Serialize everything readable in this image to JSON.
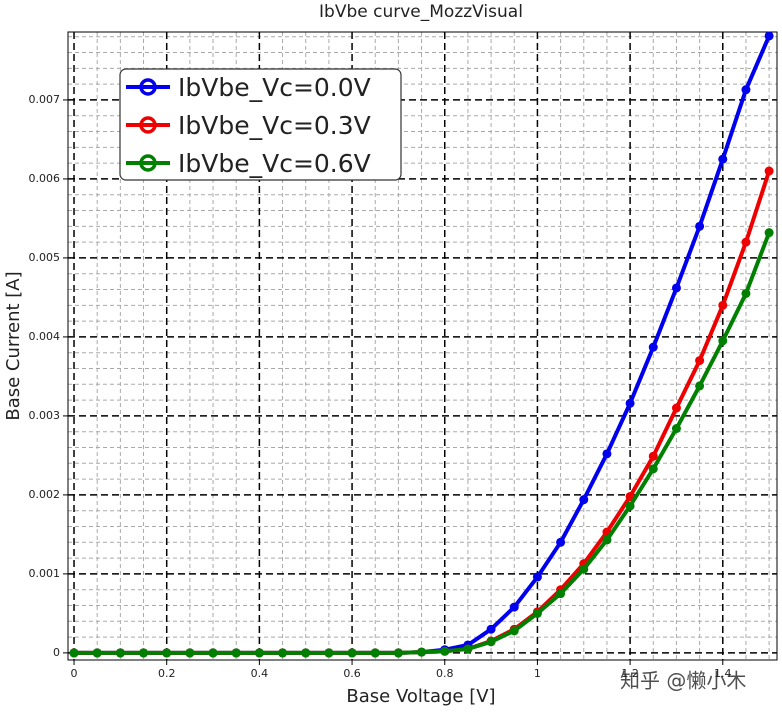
{
  "chart_data": {
    "type": "line",
    "title": "IbVbe curve_MozzVisual",
    "x_label": "Base Voltage [V]",
    "y_label": "Base Current [A]",
    "watermark": "知乎 @懒小木",
    "x": [
      0,
      0.05,
      0.1,
      0.15,
      0.2,
      0.25,
      0.3,
      0.35,
      0.4,
      0.45,
      0.5,
      0.55,
      0.6,
      0.65,
      0.7,
      0.75,
      0.8,
      0.85,
      0.9,
      0.95,
      1.0,
      1.05,
      1.1,
      1.15,
      1.2,
      1.25,
      1.3,
      1.35,
      1.4,
      1.45,
      1.5
    ],
    "series": [
      {
        "name": "IbVbe_Vc=0.0V",
        "color": "#0000ee",
        "values": [
          0,
          0,
          0,
          0,
          0,
          0,
          0,
          0,
          0,
          0,
          0,
          0,
          0,
          0,
          0,
          1e-05,
          4e-05,
          0.0001,
          0.0003,
          0.00058,
          0.00096,
          0.0014,
          0.00194,
          0.00252,
          0.00316,
          0.00387,
          0.00462,
          0.0054,
          0.00625,
          0.00713,
          0.00781
        ]
      },
      {
        "name": "IbVbe_Vc=0.3V",
        "color": "#ee0000",
        "values": [
          0,
          0,
          0,
          0,
          0,
          0,
          0,
          0,
          0,
          0,
          0,
          0,
          0,
          0,
          0,
          1e-05,
          2e-05,
          5e-05,
          0.00015,
          0.0003,
          0.00052,
          0.0008,
          0.00113,
          0.00153,
          0.00198,
          0.00249,
          0.0031,
          0.0037,
          0.0044,
          0.0052,
          0.0061
        ]
      },
      {
        "name": "IbVbe_Vc=0.6V",
        "color": "#008000",
        "values": [
          0,
          0,
          0,
          0,
          0,
          0,
          0,
          0,
          0,
          0,
          0,
          0,
          0,
          0,
          0,
          1e-05,
          2e-05,
          5e-05,
          0.00014,
          0.00028,
          0.0005,
          0.00075,
          0.00106,
          0.00143,
          0.00186,
          0.00233,
          0.00284,
          0.00338,
          0.00395,
          0.00455,
          0.00532
        ]
      }
    ],
    "xlim": [
      -0.013,
      1.517
    ],
    "ylim": [
      -9e-05,
      0.00786
    ],
    "xticks": [
      0,
      0.2,
      0.4,
      0.6,
      0.8,
      1,
      1.2,
      1.4
    ],
    "yticks": [
      0,
      0.001,
      0.002,
      0.003,
      0.004,
      0.005,
      0.006,
      0.007
    ],
    "x_minor_ticks": [
      0.05,
      0.1,
      0.15,
      0.25,
      0.3,
      0.35,
      0.45,
      0.5,
      0.55,
      0.65,
      0.7,
      0.75,
      0.85,
      0.9,
      0.95,
      1.05,
      1.1,
      1.15,
      1.25,
      1.3,
      1.35,
      1.45,
      1.5
    ],
    "y_minor_ticks": [
      0.0002,
      0.0004,
      0.0006,
      0.0008,
      0.0012,
      0.0014,
      0.0016,
      0.0018,
      0.0022,
      0.0024,
      0.0026,
      0.0028,
      0.0032,
      0.0034,
      0.0036,
      0.0038,
      0.0042,
      0.0044,
      0.0046,
      0.0048,
      0.0052,
      0.0054,
      0.0056,
      0.0058,
      0.0062,
      0.0064,
      0.0066,
      0.0068,
      0.0072,
      0.0074,
      0.0076,
      0.0078
    ],
    "grid": true,
    "legend": "upper left"
  }
}
